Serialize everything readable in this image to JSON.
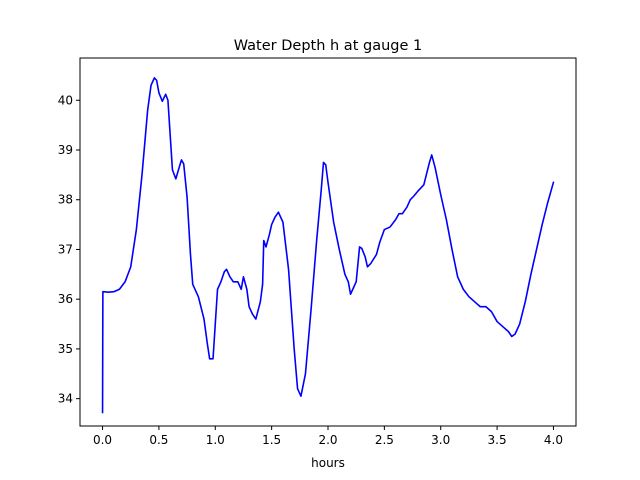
{
  "chart_data": {
    "type": "line",
    "title": "Water Depth h at gauge 1",
    "xlabel": "hours",
    "ylabel": "",
    "xlim": [
      -0.2,
      4.2
    ],
    "ylim": [
      33.45,
      40.85
    ],
    "x_ticks": [
      0.0,
      0.5,
      1.0,
      1.5,
      2.0,
      2.5,
      3.0,
      3.5,
      4.0
    ],
    "x_tick_labels": [
      "0.0",
      "0.5",
      "1.0",
      "1.5",
      "2.0",
      "2.5",
      "3.0",
      "3.5",
      "4.0"
    ],
    "y_ticks": [
      34,
      35,
      36,
      37,
      38,
      39,
      40
    ],
    "y_tick_labels": [
      "34",
      "35",
      "36",
      "37",
      "38",
      "39",
      "40"
    ],
    "grid": false,
    "legend": "none",
    "series": [
      {
        "color": "#0000ff",
        "x": [
          0.0,
          0.003,
          0.01,
          0.05,
          0.1,
          0.15,
          0.2,
          0.25,
          0.3,
          0.35,
          0.4,
          0.43,
          0.46,
          0.48,
          0.5,
          0.53,
          0.56,
          0.58,
          0.6,
          0.62,
          0.65,
          0.68,
          0.7,
          0.72,
          0.75,
          0.78,
          0.8,
          0.85,
          0.9,
          0.93,
          0.95,
          0.98,
          1.0,
          1.02,
          1.05,
          1.08,
          1.1,
          1.13,
          1.16,
          1.2,
          1.23,
          1.25,
          1.28,
          1.3,
          1.33,
          1.36,
          1.4,
          1.42,
          1.43,
          1.45,
          1.48,
          1.5,
          1.53,
          1.56,
          1.6,
          1.65,
          1.7,
          1.73,
          1.76,
          1.8,
          1.85,
          1.9,
          1.94,
          1.96,
          1.98,
          2.0,
          2.05,
          2.1,
          2.15,
          2.18,
          2.2,
          2.23,
          2.25,
          2.28,
          2.3,
          2.33,
          2.35,
          2.38,
          2.43,
          2.46,
          2.5,
          2.55,
          2.6,
          2.63,
          2.66,
          2.7,
          2.73,
          2.76,
          2.8,
          2.85,
          2.9,
          2.92,
          2.95,
          3.0,
          3.05,
          3.1,
          3.15,
          3.2,
          3.25,
          3.3,
          3.35,
          3.4,
          3.45,
          3.5,
          3.55,
          3.6,
          3.63,
          3.66,
          3.7,
          3.75,
          3.8,
          3.85,
          3.9,
          3.95,
          4.0
        ],
        "y": [
          33.72,
          36.15,
          36.15,
          36.14,
          36.15,
          36.2,
          36.35,
          36.65,
          37.4,
          38.5,
          39.8,
          40.3,
          40.45,
          40.4,
          40.15,
          39.98,
          40.12,
          40.0,
          39.3,
          38.6,
          38.42,
          38.65,
          38.8,
          38.72,
          38.05,
          36.9,
          36.3,
          36.05,
          35.6,
          35.1,
          34.8,
          34.8,
          35.5,
          36.2,
          36.35,
          36.55,
          36.6,
          36.45,
          36.35,
          36.35,
          36.2,
          36.45,
          36.2,
          35.85,
          35.7,
          35.6,
          35.95,
          36.3,
          37.18,
          37.05,
          37.3,
          37.5,
          37.65,
          37.75,
          37.55,
          36.6,
          35.0,
          34.2,
          34.05,
          34.5,
          35.8,
          37.2,
          38.2,
          38.75,
          38.7,
          38.35,
          37.55,
          37.0,
          36.5,
          36.35,
          36.1,
          36.25,
          36.35,
          37.05,
          37.02,
          36.85,
          36.65,
          36.72,
          36.9,
          37.15,
          37.4,
          37.45,
          37.6,
          37.72,
          37.72,
          37.85,
          38.0,
          38.07,
          38.18,
          38.3,
          38.75,
          38.9,
          38.65,
          38.1,
          37.6,
          37.0,
          36.45,
          36.2,
          36.05,
          35.95,
          35.85,
          35.85,
          35.75,
          35.55,
          35.45,
          35.35,
          35.25,
          35.3,
          35.5,
          35.95,
          36.5,
          37.0,
          37.5,
          37.95,
          38.35
        ]
      }
    ]
  }
}
